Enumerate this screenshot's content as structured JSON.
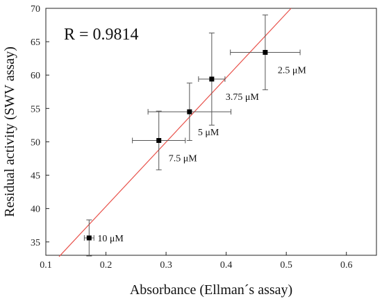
{
  "chart_data": {
    "type": "scatter",
    "title": "",
    "xlabel": "Absorbance (Ellman´s assay)",
    "ylabel": "Residual activity (SWV assay)",
    "xlim": [
      0.1,
      0.65
    ],
    "ylim": [
      33,
      70
    ],
    "xticks": [
      "0.1",
      "0.2",
      "0.3",
      "0.4",
      "0.5",
      "0.6"
    ],
    "yticks": [
      "35",
      "40",
      "45",
      "50",
      "55",
      "60",
      "65",
      "70"
    ],
    "annotation": "R = 0.9814",
    "points": [
      {
        "label": "10 μM",
        "x": 0.172,
        "y": 35.6,
        "xerr": 0.008,
        "yerr": 2.7
      },
      {
        "label": "7.5 μM",
        "x": 0.288,
        "y": 50.2,
        "xerr": 0.044,
        "yerr": 4.4
      },
      {
        "label": "5 μM",
        "x": 0.339,
        "y": 54.5,
        "xerr": 0.069,
        "yerr": 4.3
      },
      {
        "label": "3.75 μM",
        "x": 0.376,
        "y": 59.4,
        "xerr": 0.022,
        "yerr": 6.9
      },
      {
        "label": "2.5 μM",
        "x": 0.465,
        "y": 63.4,
        "xerr": 0.058,
        "yerr": 5.6
      }
    ],
    "fit_line": {
      "x": [
        0.122,
        0.508
      ],
      "y": [
        32.8,
        70.0
      ],
      "color": "#e8514a"
    },
    "grid": false,
    "legend": "none",
    "colors": {
      "points": "#000000",
      "errorbars": "#555555",
      "axis": "#222222"
    }
  }
}
